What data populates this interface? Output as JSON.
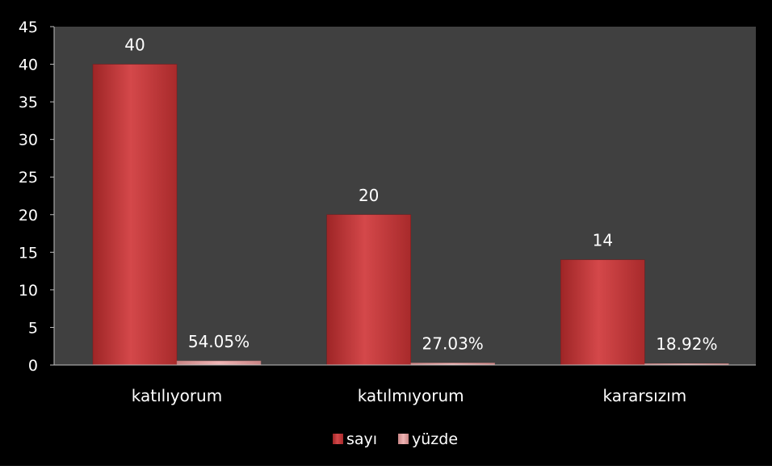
{
  "chart_data": {
    "type": "bar",
    "categories": [
      "katılıyorum",
      "katılmıyorum",
      "kararsızım"
    ],
    "series": [
      {
        "name": "sayı",
        "values": [
          40,
          20,
          14
        ],
        "labels": [
          "40",
          "20",
          "14"
        ]
      },
      {
        "name": "yüzde",
        "values": [
          0.5405,
          0.2703,
          0.1892
        ],
        "labels": [
          "54.05%",
          "27.03%",
          "18.92%"
        ]
      }
    ],
    "ylim": [
      0,
      45
    ],
    "yticks": [
      0,
      5,
      10,
      15,
      20,
      25,
      30,
      35,
      40,
      45
    ],
    "grid": false,
    "legend": "bottom",
    "colors": {
      "background": "#000000",
      "plot_area": "#404040",
      "axis": "#bfbfbf",
      "text": "#ffffff",
      "sayi": "#c0393a",
      "yuzde": "#e8a0a0"
    }
  }
}
